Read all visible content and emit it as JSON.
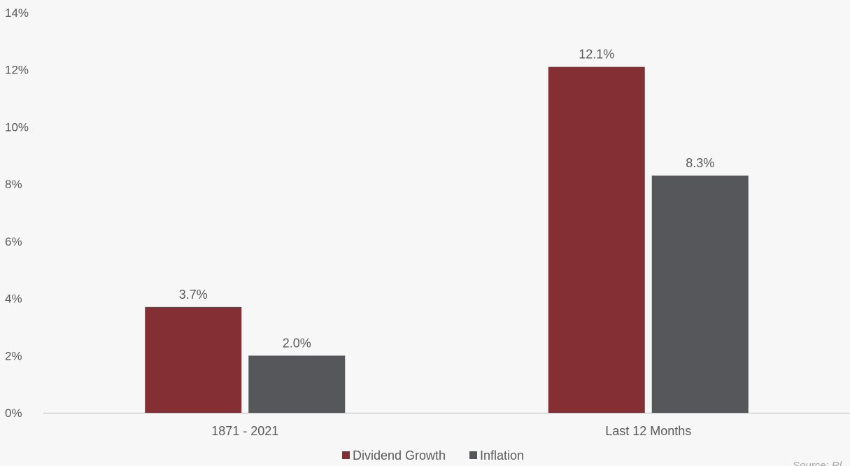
{
  "chart_data": {
    "type": "bar",
    "categories": [
      "1871 - 2021",
      "Last 12 Months"
    ],
    "series": [
      {
        "name": "Dividend Growth",
        "values": [
          3.7,
          12.1
        ],
        "labels": [
          "3.7%",
          "12.1%"
        ],
        "color": "#832f34"
      },
      {
        "name": "Inflation",
        "values": [
          2.0,
          8.3
        ],
        "labels": [
          "2.0%",
          "8.3%"
        ],
        "color": "#56575b"
      }
    ],
    "ylim": [
      0,
      14
    ],
    "y_ticks": [
      0,
      2,
      4,
      6,
      8,
      10,
      12,
      14
    ],
    "y_tick_labels": [
      "0%",
      "2%",
      "4%",
      "6%",
      "8%",
      "10%",
      "12%",
      "14%"
    ],
    "grid": false,
    "legend_position": "bottom-center",
    "source_note": "Source: Rl"
  }
}
